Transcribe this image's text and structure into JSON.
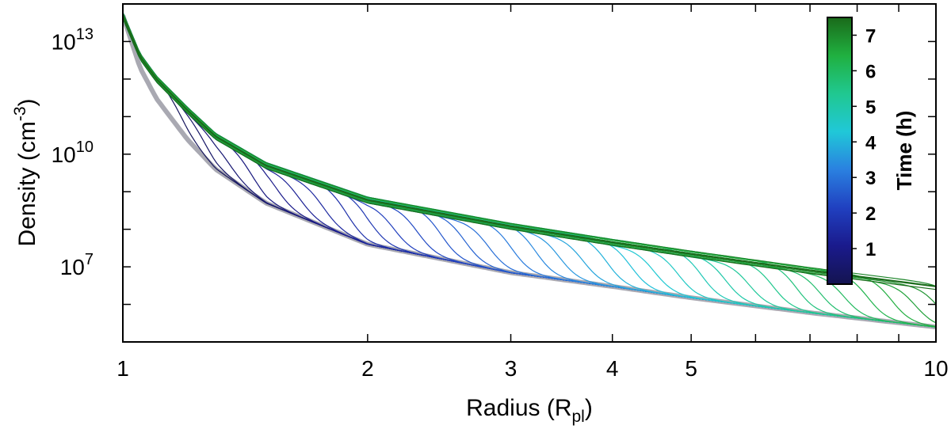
{
  "chart_data": {
    "type": "line",
    "xlabel": "Radius (R",
    "xlabel_sub": "pl",
    "xlabel_end": ")",
    "ylabel": "Density (cm",
    "ylabel_sup": "-3",
    "ylabel_end": ")",
    "x_scale": "log",
    "y_scale": "log",
    "xlim": [
      1,
      10
    ],
    "ylim": [
      100000.0,
      100000000000000.0
    ],
    "x_ticks": [
      {
        "value": 1,
        "label": "1"
      },
      {
        "value": 2,
        "label": "2"
      },
      {
        "value": 3,
        "label": "3"
      },
      {
        "value": 4,
        "label": "4"
      },
      {
        "value": 5,
        "label": "5"
      },
      {
        "value": 10,
        "label": "10"
      }
    ],
    "y_ticks": [
      {
        "value": 10000000,
        "base": "10",
        "exp": "7"
      },
      {
        "value": 10000000000,
        "base": "10",
        "exp": "10"
      },
      {
        "value": 10000000000000,
        "base": "10",
        "exp": "13"
      }
    ],
    "colorbar": {
      "title": "Time (h)",
      "range": [
        0,
        7.5
      ],
      "ticks": [
        "1",
        "2",
        "3",
        "4",
        "5",
        "6",
        "7"
      ],
      "colors": [
        "#141450",
        "#1a1a8c",
        "#2040c0",
        "#2a80e0",
        "#20c8d8",
        "#20c890",
        "#20b040",
        "#1a6a1a"
      ]
    },
    "initial_profile": {
      "color": "#9a9aa4",
      "x": [
        1.0,
        1.05,
        1.1,
        1.2,
        1.3,
        1.5,
        2.0,
        3.0,
        4.0,
        5.0,
        7.0,
        10.0
      ],
      "y": [
        50000000000000.0,
        2000000000000.0,
        300000000000.0,
        25000000000.0,
        4000000000.0,
        500000000.0,
        40000000.0,
        7000000.0,
        3000000.0,
        1500000.0,
        600000.0,
        250000.0
      ]
    },
    "final_profile": {
      "color": "#1a6a1a",
      "x": [
        1.0,
        1.05,
        1.1,
        1.2,
        1.3,
        1.5,
        2.0,
        3.0,
        4.0,
        5.0,
        7.0,
        10.0
      ],
      "y": [
        50000000000000.0,
        4000000000000.0,
        1000000000000.0,
        150000000000.0,
        30000000000.0,
        5000000000.0,
        600000000.0,
        120000000.0,
        45000000.0,
        22000000.0,
        8000000.0,
        3000000.0
      ]
    },
    "series_count": 36
  }
}
